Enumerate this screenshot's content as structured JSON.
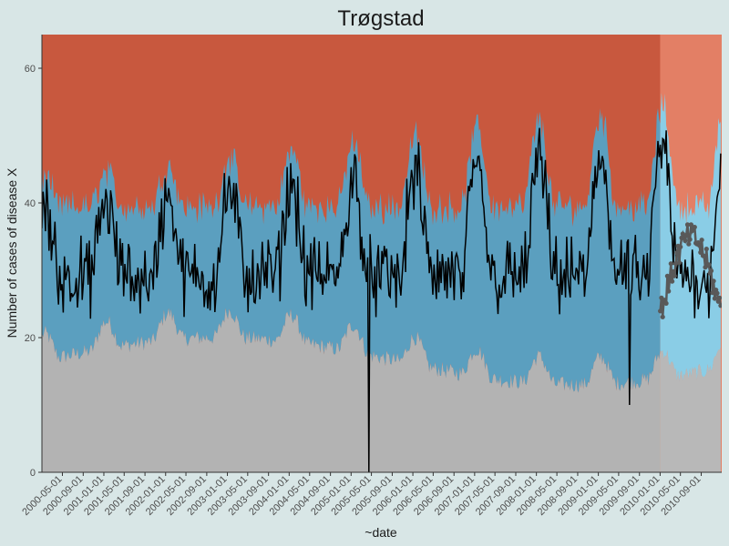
{
  "chart_data": {
    "type": "line",
    "title": "Trøgstad",
    "xlabel": "~date",
    "ylabel": "Number of cases of disease X",
    "ylim": [
      0,
      65
    ],
    "y_ticks": [
      0,
      20,
      40,
      60
    ],
    "x_tick_labels": [
      "2000-05-01",
      "2000-09-01",
      "2001-01-01",
      "2001-05-01",
      "2001-09-01",
      "2002-01-01",
      "2002-05-01",
      "2002-09-01",
      "2003-01-01",
      "2003-05-01",
      "2003-09-01",
      "2004-01-01",
      "2004-05-01",
      "2004-09-01",
      "2005-01-01",
      "2005-05-01",
      "2005-09-01",
      "2006-01-01",
      "2006-05-01",
      "2006-09-01",
      "2007-01-01",
      "2007-05-01",
      "2007-09-01",
      "2008-01-01",
      "2008-05-01",
      "2008-09-01",
      "2009-01-01",
      "2009-05-01",
      "2009-09-01",
      "2010-01-01",
      "2010-05-01",
      "2010-09-01"
    ],
    "x_range": [
      "2000-01-01",
      "2010-12-31"
    ],
    "forecast_start": "2010-01-01",
    "grid": false,
    "legend": "none",
    "bands": [
      {
        "role": "lower-zone",
        "color": "#b3b3b3",
        "shape": "seasonal",
        "baseline_minmax": [
          13,
          20
        ],
        "peak_months": [
          1,
          2
        ],
        "amplitude": 4,
        "noise": 2.4
      },
      {
        "role": "normal-range",
        "color": "#5b9fbf",
        "shape": "seasonal",
        "upper_baseline_minmax": [
          38,
          45
        ],
        "peak_months": [
          1,
          2
        ],
        "amplitude_start": 4,
        "amplitude_end": 16,
        "noise": 3.2
      },
      {
        "role": "upper-zone",
        "color": "#c8583e",
        "top": 65
      }
    ],
    "forecast_colors": {
      "lower-zone": "#b8b8b8",
      "normal-range": "#8acde6",
      "upper-zone": "#f59a80"
    },
    "series": [
      {
        "role": "observed",
        "color": "#000000",
        "baseline_minmax": [
          26,
          32
        ],
        "peak_months": [
          1,
          2
        ],
        "amplitude_start": 10,
        "amplitude_end": 20,
        "noise": 8,
        "sample_interval_days": 7,
        "dips": [
          {
            "date": "2005-04-15",
            "value": 0
          },
          {
            "date": "2009-07-01",
            "value": 10
          }
        ]
      },
      {
        "role": "forecast",
        "color": "#595959",
        "markers": true,
        "range": [
          "2010-01-01",
          "2010-12-31"
        ],
        "value_minmax": [
          22,
          37
        ]
      }
    ]
  }
}
